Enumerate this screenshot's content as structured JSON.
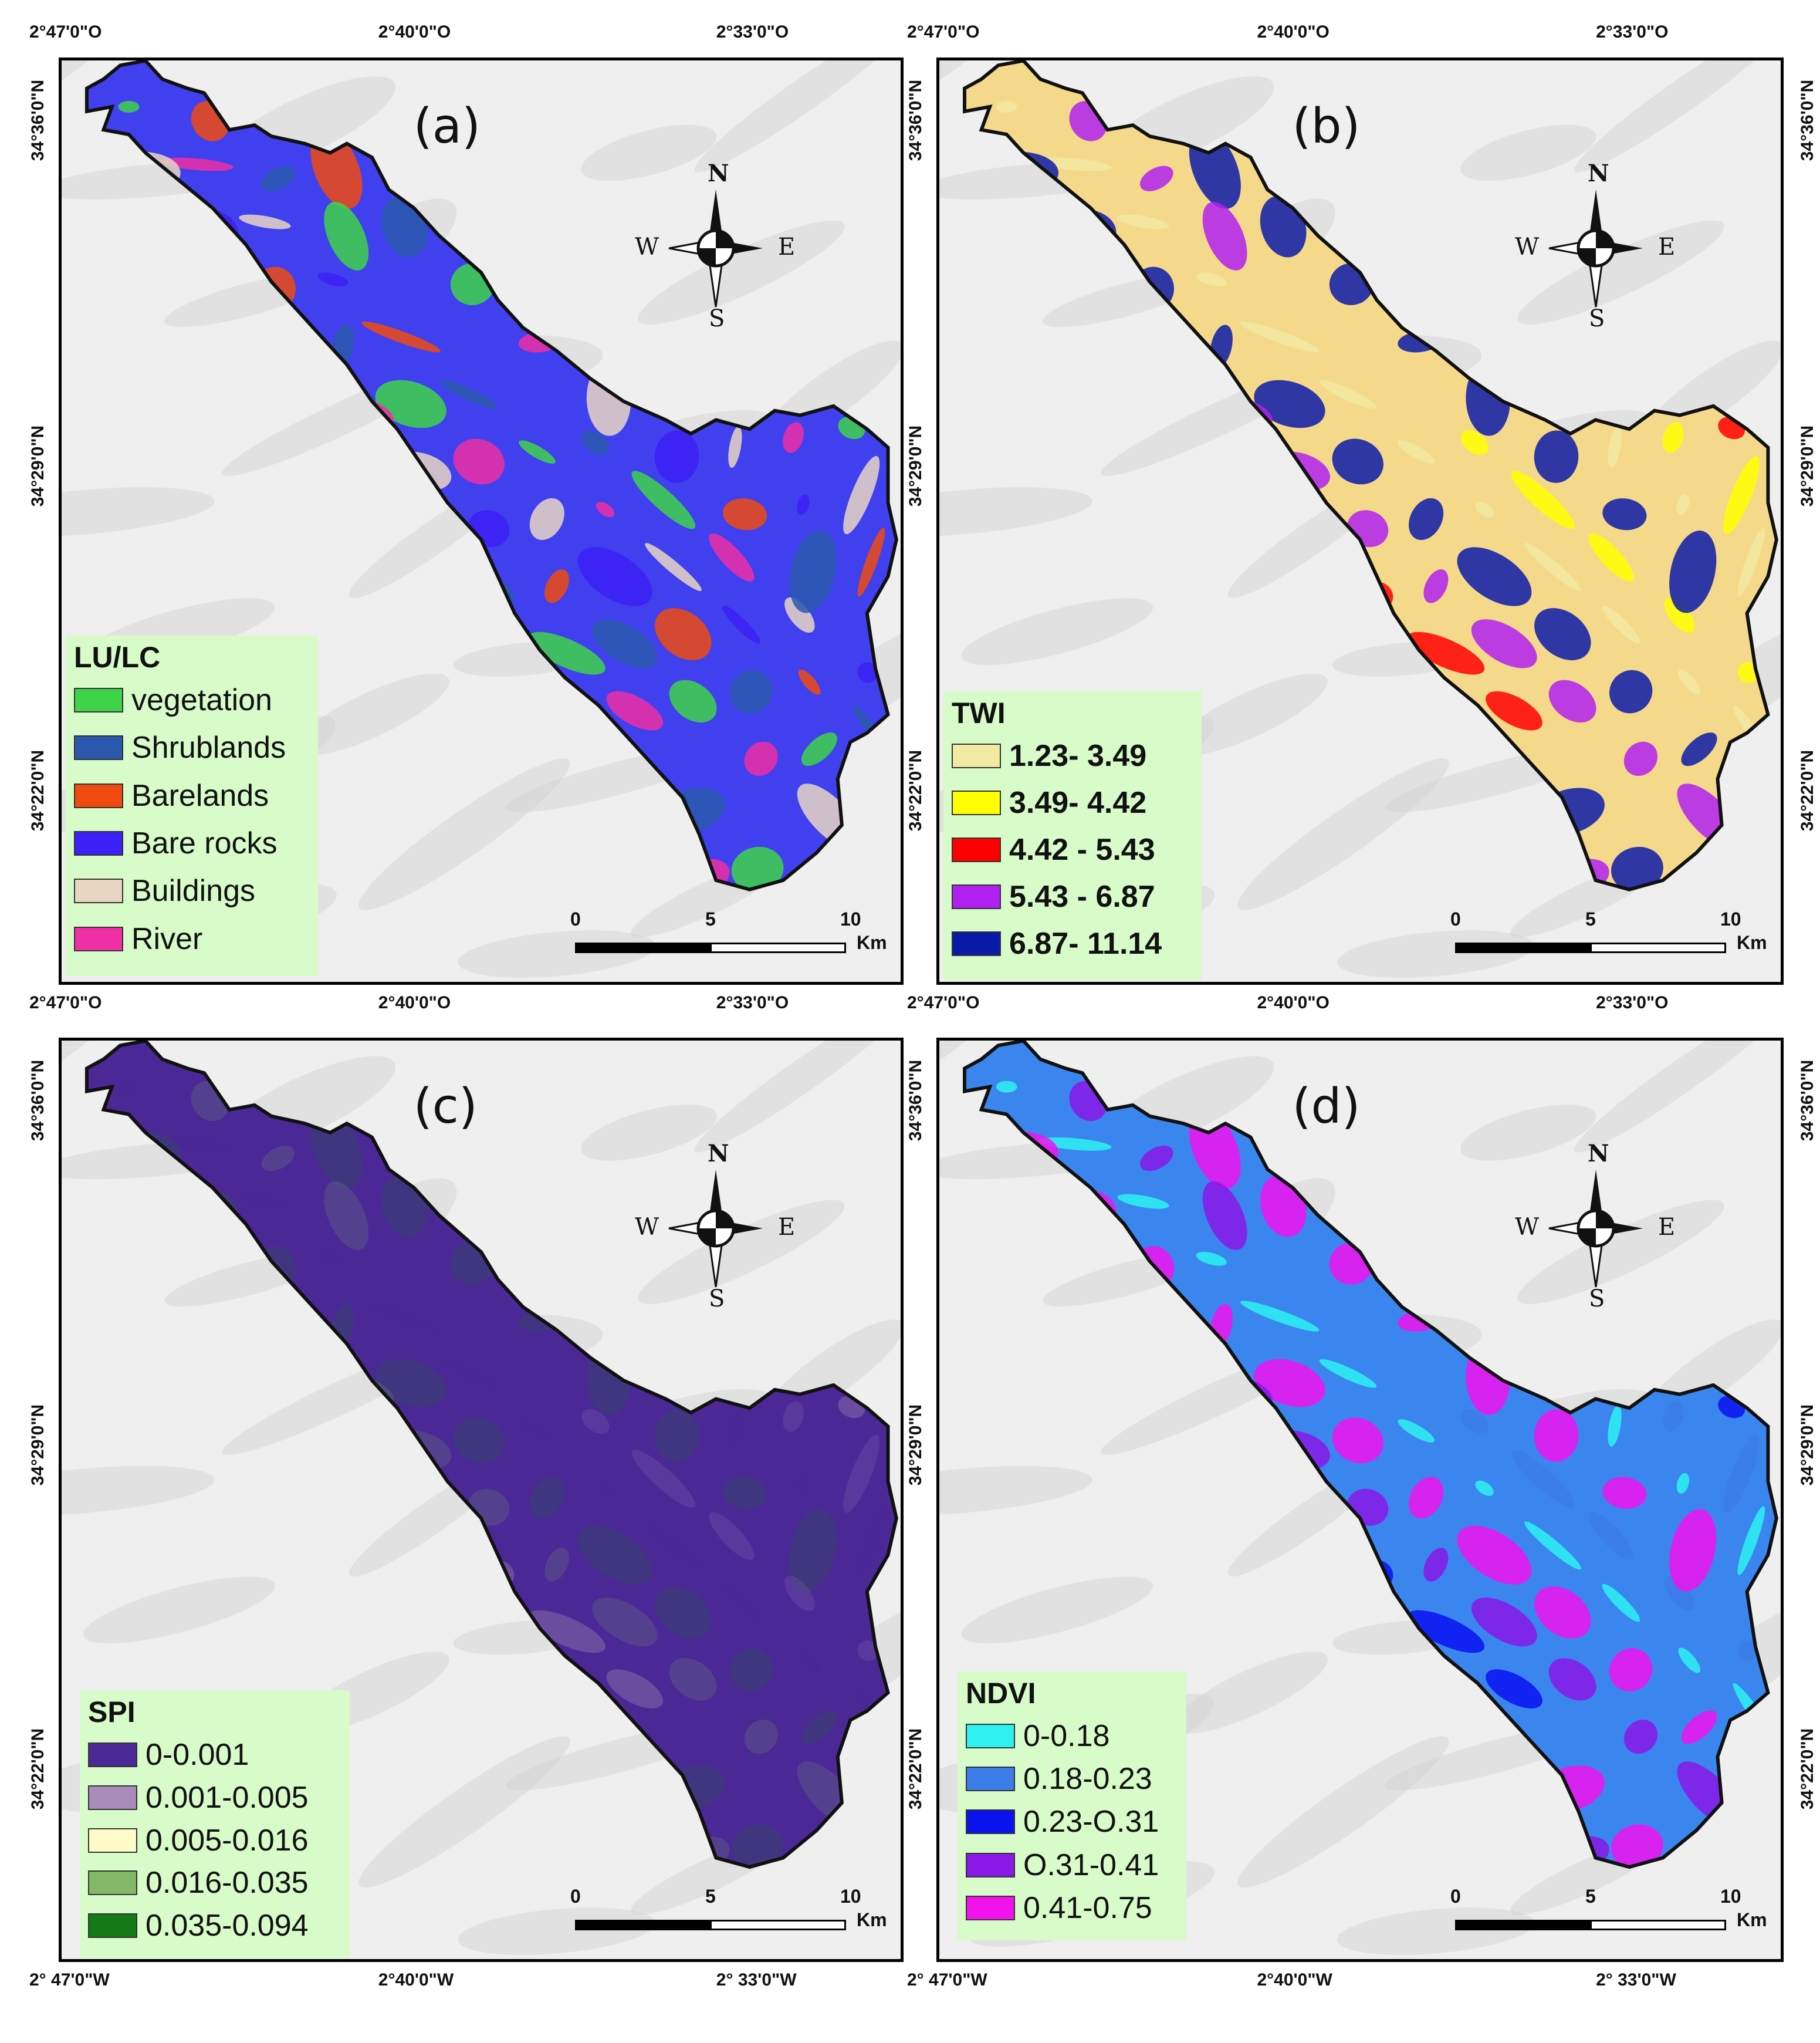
{
  "panels": [
    {
      "id": "a",
      "label": "(a)",
      "top_lon": [
        "2°47'0\"O",
        "2°40'0\"O",
        "2°33'0\"O"
      ],
      "bottom_lon": [
        "2°47'0\"O",
        "2°40'0\"O",
        "2°33'0\"O"
      ],
      "left_lat": [
        "34°36'0\"N",
        "34°29'0\"N",
        "34°22'0\"N"
      ],
      "right_lat": [],
      "legend": {
        "title": "LU/LC",
        "bold_labels": false,
        "items": [
          {
            "label": "vegetation",
            "color": "#3fd34a"
          },
          {
            "label": "Shrublands",
            "color": "#2a58ad"
          },
          {
            "label": "Barelands",
            "color": "#f04a10"
          },
          {
            "label": "Bare rocks",
            "color": "#3c20f5"
          },
          {
            "label": "Buildings",
            "color": "#e8d6c3"
          },
          {
            "label": "River",
            "color": "#ef2fa5"
          }
        ]
      },
      "scale": {
        "ticks": [
          "0",
          "5",
          "10"
        ],
        "unit": "Km"
      },
      "compass": {
        "n": "N",
        "s": "S",
        "e": "E",
        "w": "W"
      }
    },
    {
      "id": "b",
      "label": "(b)",
      "top_lon": [
        "2°47'0\"O",
        "2°40'0\"O",
        "2°33'0\"O"
      ],
      "bottom_lon": [
        "2°47'0\"O",
        "2°40'0\"O",
        "2°33'0\"O"
      ],
      "left_lat": [
        "34°36'0\"N",
        "34°29'0\"N",
        "34°22'0\"N"
      ],
      "right_lat": [
        "34°36'0\"N",
        "34°29'0\"N",
        "34°22'0\"N"
      ],
      "legend": {
        "title": "TWI",
        "bold_labels": true,
        "items": [
          {
            "label": "1.23- 3.49",
            "color": "#f2e9a2"
          },
          {
            "label": "3.49- 4.42",
            "color": "#ffff00"
          },
          {
            "label": "4.42 - 5.43",
            "color": "#ff0000"
          },
          {
            "label": "5.43 - 6.87",
            "color": "#b020f0"
          },
          {
            "label": "6.87- 11.14",
            "color": "#0a1aa8"
          }
        ]
      },
      "scale": {
        "ticks": [
          "0",
          "5",
          "10"
        ],
        "unit": "Km"
      },
      "compass": {
        "n": "N",
        "s": "S",
        "e": "E",
        "w": "W"
      }
    },
    {
      "id": "c",
      "label": "(c)",
      "top_lon": [],
      "bottom_lon": [
        "2° 47'0\"W",
        "2°40'0\"W",
        "2° 33'0\"W"
      ],
      "left_lat": [
        "34°36'0\"N",
        "34°29'0\"N",
        "34°22'0\"N"
      ],
      "right_lat": [],
      "legend": {
        "title": "SPI",
        "bold_labels": false,
        "items": [
          {
            "label": "0-0.001",
            "color": "#4a2896"
          },
          {
            "label": "0.001-0.005",
            "color": "#a88cb9"
          },
          {
            "label": "0.005-0.016",
            "color": "#fdfcc8"
          },
          {
            "label": "0.016-0.035",
            "color": "#82b866"
          },
          {
            "label": "0.035-0.094",
            "color": "#137a16"
          }
        ]
      },
      "scale": {
        "ticks": [
          "0",
          "5",
          "10"
        ],
        "unit": "Km"
      },
      "compass": {
        "n": "N",
        "s": "S",
        "e": "E",
        "w": "W"
      }
    },
    {
      "id": "d",
      "label": "(d)",
      "top_lon": [],
      "bottom_lon": [
        "2° 47'0\"W",
        "2°40'0\"W",
        "2° 33'0\"W"
      ],
      "left_lat": [
        "34°36'0\"N",
        "34°29'0\"N",
        "34°22'0\"N"
      ],
      "right_lat": [
        "34°36'0\"N",
        "34°29'0\"N",
        "34°22'0\"N"
      ],
      "legend": {
        "title": "NDVI",
        "bold_labels": false,
        "items": [
          {
            "label": "0-0.18",
            "color": "#2ef2f2"
          },
          {
            "label": "0.18-0.23",
            "color": "#3d7de8"
          },
          {
            "label": "0.23-O.31",
            "color": "#0a12f0"
          },
          {
            "label": "O.31-0.41",
            "color": "#8a18e6"
          },
          {
            "label": "0.41-0.75",
            "color": "#f212ee"
          }
        ]
      },
      "scale": {
        "ticks": [
          "0",
          "5",
          "10"
        ],
        "unit": "Km"
      },
      "compass": {
        "n": "N",
        "s": "S",
        "e": "E",
        "w": "W"
      }
    }
  ]
}
